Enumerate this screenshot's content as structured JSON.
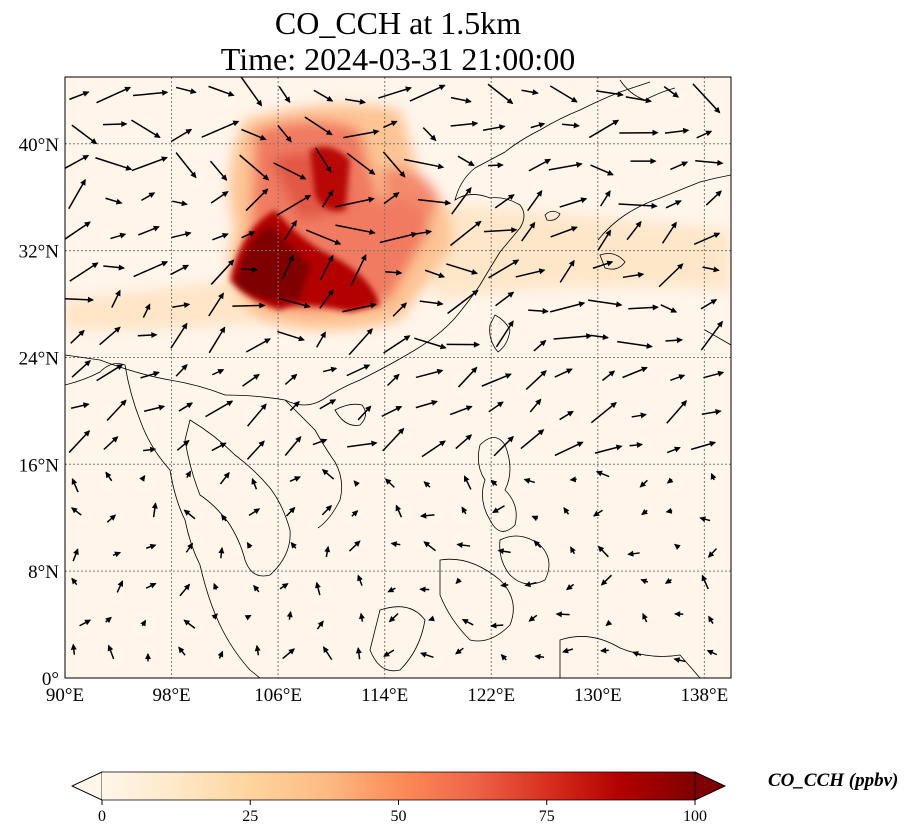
{
  "title": {
    "line1": "CO_CCH at 1.5km",
    "line2": "Time: 2024-03-31 21:00:00"
  },
  "map": {
    "lon_range": [
      90,
      140
    ],
    "lat_range": [
      0,
      45
    ],
    "lon_ticks": [
      {
        "value": 90,
        "label": "90°E"
      },
      {
        "value": 98,
        "label": "98°E"
      },
      {
        "value": 106,
        "label": "106°E"
      },
      {
        "value": 114,
        "label": "114°E"
      },
      {
        "value": 122,
        "label": "122°E"
      },
      {
        "value": 130,
        "label": "130°E"
      },
      {
        "value": 138,
        "label": "138°E"
      }
    ],
    "lat_ticks": [
      {
        "value": 0,
        "label": "0°"
      },
      {
        "value": 8,
        "label": "8°N"
      },
      {
        "value": 16,
        "label": "16°N"
      },
      {
        "value": 24,
        "label": "24°N"
      },
      {
        "value": 32,
        "label": "32°N"
      },
      {
        "value": 40,
        "label": "40°N"
      }
    ],
    "gridlines": true,
    "background_color": "#fff5eb",
    "plume_color": "#7f0000"
  },
  "colorbar": {
    "label": "CO_CCH (ppbv)",
    "range": [
      0,
      100
    ],
    "extend": "both",
    "colormap": "OrRd",
    "ticks": [
      {
        "value": 0,
        "label": "0"
      },
      {
        "value": 25,
        "label": "25"
      },
      {
        "value": 50,
        "label": "50"
      },
      {
        "value": 75,
        "label": "75"
      },
      {
        "value": 100,
        "label": "100"
      }
    ]
  }
}
